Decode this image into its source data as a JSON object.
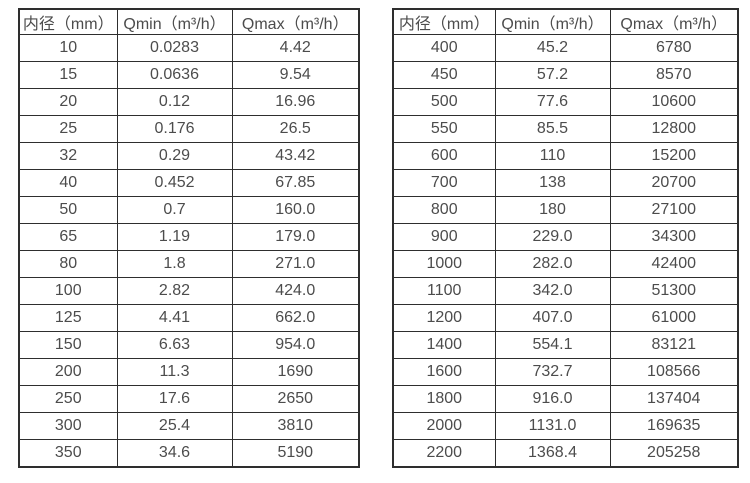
{
  "colors": {
    "text": "#4c4c4c",
    "border": "#2e2e2e",
    "background": "#ffffff"
  },
  "chart_data": [
    {
      "type": "table",
      "title": "",
      "columns": [
        "内径（mm）",
        "Qmin（m³/h）",
        "Qmax（m³/h）"
      ],
      "rows": [
        [
          "10",
          "0.0283",
          "4.42"
        ],
        [
          "15",
          "0.0636",
          "9.54"
        ],
        [
          "20",
          "0.12",
          "16.96"
        ],
        [
          "25",
          "0.176",
          "26.5"
        ],
        [
          "32",
          "0.29",
          "43.42"
        ],
        [
          "40",
          "0.452",
          "67.85"
        ],
        [
          "50",
          "0.7",
          "160.0"
        ],
        [
          "65",
          "1.19",
          "179.0"
        ],
        [
          "80",
          "1.8",
          "271.0"
        ],
        [
          "100",
          "2.82",
          "424.0"
        ],
        [
          "125",
          "4.41",
          "662.0"
        ],
        [
          "150",
          "6.63",
          "954.0"
        ],
        [
          "200",
          "11.3",
          "1690"
        ],
        [
          "250",
          "17.6",
          "2650"
        ],
        [
          "300",
          "25.4",
          "3810"
        ],
        [
          "350",
          "34.6",
          "5190"
        ]
      ]
    },
    {
      "type": "table",
      "title": "",
      "columns": [
        "内径（mm）",
        "Qmin（m³/h）",
        "Qmax（m³/h）"
      ],
      "rows": [
        [
          "400",
          "45.2",
          "6780"
        ],
        [
          "450",
          "57.2",
          "8570"
        ],
        [
          "500",
          "77.6",
          "10600"
        ],
        [
          "550",
          "85.5",
          "12800"
        ],
        [
          "600",
          "110",
          "15200"
        ],
        [
          "700",
          "138",
          "20700"
        ],
        [
          "800",
          "180",
          "27100"
        ],
        [
          "900",
          "229.0",
          "34300"
        ],
        [
          "1000",
          "282.0",
          "42400"
        ],
        [
          "1100",
          "342.0",
          "51300"
        ],
        [
          "1200",
          "407.0",
          "61000"
        ],
        [
          "1400",
          "554.1",
          "83121"
        ],
        [
          "1600",
          "732.7",
          "108566"
        ],
        [
          "1800",
          "916.0",
          "137404"
        ],
        [
          "2000",
          "1131.0",
          "169635"
        ],
        [
          "2200",
          "1368.4",
          "205258"
        ]
      ]
    }
  ]
}
